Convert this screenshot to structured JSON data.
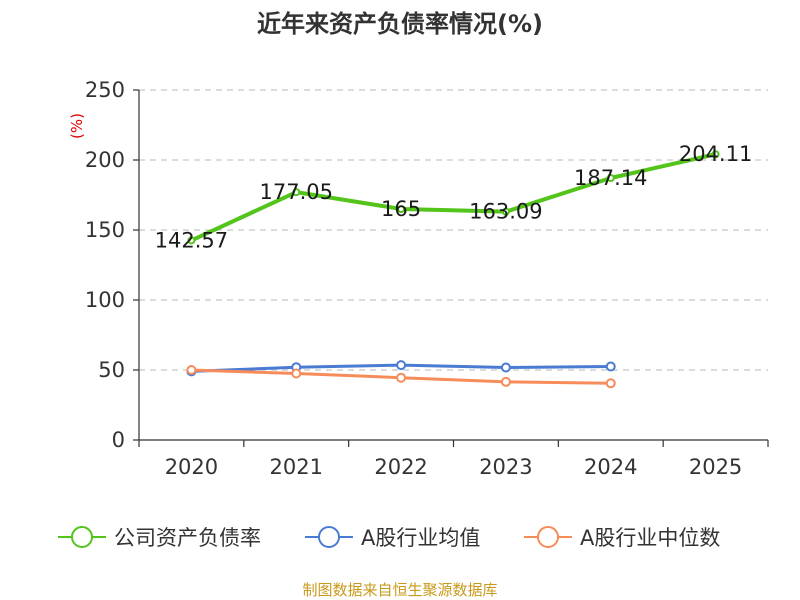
{
  "chart_data": {
    "type": "line",
    "title": "近年来资产负债率情况(%)",
    "xlabel": "",
    "ylabel": "(%)",
    "categories": [
      "2020",
      "2021",
      "2022",
      "2023",
      "2024",
      "2025"
    ],
    "ylim": [
      0,
      250
    ],
    "yticks": [
      0,
      50,
      100,
      150,
      200,
      250
    ],
    "grid": true,
    "legend_position": "bottom",
    "series": [
      {
        "name": "公司资产负债率",
        "color": "#52c41a",
        "values": [
          142.57,
          177.05,
          165,
          163.09,
          187.14,
          204.11
        ],
        "labels": [
          "142.57",
          "177.05",
          "165",
          "163.09",
          "187.14",
          "204.11"
        ]
      },
      {
        "name": "A股行业均值",
        "color": "#4a7bd3",
        "values": [
          49.0,
          52.0,
          53.5,
          51.8,
          52.5,
          null
        ]
      },
      {
        "name": "A股行业中位数",
        "color": "#f78c5b",
        "values": [
          50.0,
          47.5,
          44.5,
          41.5,
          40.5,
          null
        ]
      }
    ]
  },
  "footer": "制图数据来自恒生聚源数据库"
}
